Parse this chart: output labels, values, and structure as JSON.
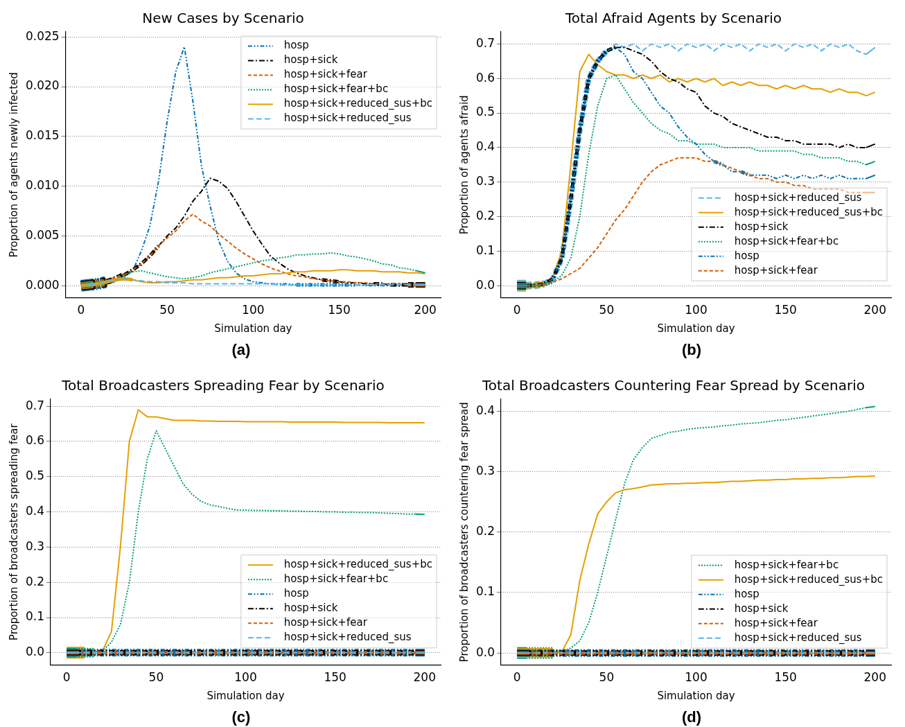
{
  "chart_data": [
    {
      "type": "line",
      "title": "New Cases by Scenario",
      "xlabel": "Simulation day",
      "ylabel": "Proportion of agents newly infected",
      "annotations": [
        "(a)"
      ],
      "grid": "y",
      "legend": "top right",
      "x": [
        0,
        5,
        10,
        15,
        20,
        25,
        30,
        35,
        40,
        45,
        50,
        55,
        60,
        65,
        70,
        75,
        80,
        85,
        90,
        95,
        100,
        105,
        110,
        115,
        120,
        125,
        130,
        135,
        140,
        145,
        150,
        155,
        160,
        165,
        170,
        175,
        180,
        185,
        190,
        195,
        200
      ],
      "xlim": [
        -9,
        209
      ],
      "xticks": [
        0,
        50,
        100,
        150,
        200
      ],
      "ylim": [
        -0.0012,
        0.0255
      ],
      "yticks": [
        {
          "value": 0,
          "label": "0.000"
        },
        {
          "value": 0.005,
          "label": "0.005"
        },
        {
          "value": 0.01,
          "label": "0.010"
        },
        {
          "value": 0.015,
          "label": "0.015"
        },
        {
          "value": 0.02,
          "label": "0.020"
        },
        {
          "value": 0.025,
          "label": "0.025"
        }
      ],
      "series": [
        {
          "name": "hosp",
          "color": "#0072b2",
          "line_style": "dashdotdot",
          "values": [
            0,
            0.0001,
            0.0002,
            0.0004,
            0.0006,
            0.0009,
            0.0015,
            0.0035,
            0.006,
            0.0105,
            0.0165,
            0.0215,
            0.024,
            0.0185,
            0.012,
            0.008,
            0.0045,
            0.0025,
            0.0013,
            0.0007,
            0.0004,
            0.0003,
            0.0002,
            0.0002,
            0.0002,
            0.0001,
            0.0001,
            0.0001,
            0.0001,
            0.0001,
            0.0001,
            0.0001,
            0.0001,
            0,
            0,
            0,
            0,
            0,
            0,
            0,
            0
          ]
        },
        {
          "name": "hosp+sick",
          "color": "#000000",
          "line_style": "dashdot",
          "values": [
            0,
            0.0001,
            0.0002,
            0.0004,
            0.0007,
            0.0011,
            0.0016,
            0.0022,
            0.003,
            0.004,
            0.005,
            0.0058,
            0.007,
            0.0085,
            0.0095,
            0.0108,
            0.0105,
            0.0098,
            0.0085,
            0.007,
            0.0055,
            0.0042,
            0.003,
            0.0023,
            0.0017,
            0.0013,
            0.001,
            0.0008,
            0.0006,
            0.0005,
            0.0004,
            0.0003,
            0.0003,
            0.0002,
            0.0002,
            0.0002,
            0.0001,
            0.0001,
            0.0001,
            0.0001,
            0.0001
          ]
        },
        {
          "name": "hosp+sick+fear",
          "color": "#d55e00",
          "line_style": "dashed",
          "values": [
            0,
            0.0001,
            0.0002,
            0.0004,
            0.0007,
            0.0011,
            0.0016,
            0.0022,
            0.003,
            0.004,
            0.0048,
            0.0055,
            0.0065,
            0.0072,
            0.0065,
            0.006,
            0.0052,
            0.0045,
            0.0038,
            0.0032,
            0.0027,
            0.0022,
            0.0018,
            0.0015,
            0.0012,
            0.001,
            0.0009,
            0.0007,
            0.0006,
            0.0005,
            0.0004,
            0.0004,
            0.0003,
            0.0003,
            0.0002,
            0.0002,
            0.0002,
            0.0002,
            0.0001,
            0.0001,
            0.0001
          ]
        },
        {
          "name": "hosp+sick+fear+bc",
          "color": "#009e73",
          "line_style": "dotted",
          "values": [
            0,
            0.0001,
            0.0002,
            0.0004,
            0.0007,
            0.0011,
            0.0014,
            0.0015,
            0.0013,
            0.0011,
            0.0009,
            0.0008,
            0.0007,
            0.0008,
            0.001,
            0.0013,
            0.0015,
            0.0017,
            0.0019,
            0.0021,
            0.0023,
            0.0025,
            0.0026,
            0.0028,
            0.0029,
            0.0031,
            0.0031,
            0.0032,
            0.0032,
            0.0033,
            0.0032,
            0.003,
            0.0029,
            0.0027,
            0.0025,
            0.0022,
            0.0021,
            0.0018,
            0.0017,
            0.0015,
            0.0013
          ]
        },
        {
          "name": "hosp+sick+reduced_sus+bc",
          "color": "#e69f00",
          "line_style": "solid",
          "values": [
            0,
            0.0001,
            0.0002,
            0.0004,
            0.0006,
            0.0007,
            0.0006,
            0.0004,
            0.0003,
            0.0003,
            0.0004,
            0.0004,
            0.0005,
            0.0006,
            0.0006,
            0.0007,
            0.0008,
            0.0008,
            0.0009,
            0.001,
            0.001,
            0.0011,
            0.0012,
            0.0012,
            0.0013,
            0.0014,
            0.0014,
            0.0015,
            0.0015,
            0.0015,
            0.0016,
            0.0016,
            0.0015,
            0.0015,
            0.0015,
            0.0014,
            0.0014,
            0.0014,
            0.0013,
            0.0013,
            0.0012
          ]
        },
        {
          "name": "hosp+sick+reduced_sus",
          "color": "#56b4e9",
          "line_style": "longdashed",
          "values": [
            0,
            0.0001,
            0.0002,
            0.0004,
            0.0006,
            0.0007,
            0.0006,
            0.0005,
            0.0004,
            0.0004,
            0.0003,
            0.0003,
            0.0003,
            0.0002,
            0.0002,
            0.0002,
            0.0002,
            0.0002,
            0.0002,
            0.0002,
            0.0002,
            0.0002,
            0.0002,
            0.0001,
            0.0001,
            0.0001,
            0.0001,
            0.0001,
            0.0001,
            0.0001,
            0.0001,
            0.0001,
            0.0001,
            0.0001,
            0.0001,
            0.0001,
            0.0001,
            0.0001,
            0.0001,
            0.0001,
            0.0001
          ]
        }
      ]
    },
    {
      "type": "line",
      "title": "Total Afraid Agents by Scenario",
      "xlabel": "Simulation day",
      "ylabel": "Proportion of agents afraid",
      "annotations": [
        "(b)"
      ],
      "grid": "y",
      "legend": "bottom right",
      "x": [
        0,
        5,
        10,
        15,
        20,
        25,
        30,
        35,
        40,
        45,
        50,
        55,
        60,
        65,
        70,
        75,
        80,
        85,
        90,
        95,
        100,
        105,
        110,
        115,
        120,
        125,
        130,
        135,
        140,
        145,
        150,
        155,
        160,
        165,
        170,
        175,
        180,
        185,
        190,
        195,
        200
      ],
      "xlim": [
        -9,
        209
      ],
      "xticks": [
        0,
        50,
        100,
        150,
        200
      ],
      "ylim": [
        -0.035,
        0.735
      ],
      "yticks": [
        {
          "value": 0,
          "label": "0.0"
        },
        0.1,
        0.2,
        0.3,
        0.4,
        0.5,
        0.6,
        0.7
      ],
      "series": [
        {
          "name": "hosp+sick+reduced_sus",
          "color": "#56b4e9",
          "line_style": "longdashed",
          "values": [
            0,
            0,
            0.001,
            0.005,
            0.02,
            0.08,
            0.25,
            0.45,
            0.6,
            0.65,
            0.68,
            0.7,
            0.69,
            0.7,
            0.68,
            0.7,
            0.69,
            0.7,
            0.68,
            0.7,
            0.69,
            0.7,
            0.68,
            0.7,
            0.69,
            0.7,
            0.68,
            0.7,
            0.69,
            0.7,
            0.68,
            0.7,
            0.69,
            0.7,
            0.68,
            0.7,
            0.69,
            0.7,
            0.68,
            0.67,
            0.69
          ]
        },
        {
          "name": "hosp+sick+reduced_sus+bc",
          "color": "#e69f00",
          "line_style": "solid",
          "values": [
            0,
            0,
            0.001,
            0.005,
            0.025,
            0.1,
            0.35,
            0.62,
            0.67,
            0.64,
            0.62,
            0.61,
            0.61,
            0.6,
            0.61,
            0.6,
            0.61,
            0.59,
            0.6,
            0.59,
            0.6,
            0.59,
            0.6,
            0.58,
            0.59,
            0.58,
            0.59,
            0.58,
            0.58,
            0.57,
            0.58,
            0.57,
            0.58,
            0.57,
            0.57,
            0.56,
            0.57,
            0.56,
            0.56,
            0.55,
            0.56
          ]
        },
        {
          "name": "hosp+sick",
          "color": "#000000",
          "line_style": "dashdot",
          "values": [
            0,
            0,
            0.001,
            0.005,
            0.02,
            0.08,
            0.25,
            0.45,
            0.6,
            0.65,
            0.68,
            0.69,
            0.69,
            0.68,
            0.67,
            0.65,
            0.62,
            0.6,
            0.59,
            0.57,
            0.56,
            0.52,
            0.5,
            0.49,
            0.47,
            0.46,
            0.45,
            0.44,
            0.43,
            0.43,
            0.42,
            0.42,
            0.41,
            0.41,
            0.41,
            0.41,
            0.4,
            0.41,
            0.4,
            0.4,
            0.41
          ]
        },
        {
          "name": "hosp+sick+fear+bc",
          "color": "#009e73",
          "line_style": "dotted",
          "values": [
            0,
            0,
            0,
            0.003,
            0.01,
            0.03,
            0.08,
            0.2,
            0.38,
            0.52,
            0.6,
            0.61,
            0.57,
            0.53,
            0.5,
            0.47,
            0.45,
            0.44,
            0.42,
            0.42,
            0.41,
            0.41,
            0.41,
            0.4,
            0.4,
            0.4,
            0.4,
            0.39,
            0.39,
            0.39,
            0.39,
            0.39,
            0.38,
            0.38,
            0.37,
            0.37,
            0.37,
            0.36,
            0.36,
            0.35,
            0.36
          ]
        },
        {
          "name": "hosp",
          "color": "#0072b2",
          "line_style": "dashdotdot",
          "values": [
            0,
            0,
            0.001,
            0.005,
            0.02,
            0.08,
            0.25,
            0.45,
            0.6,
            0.65,
            0.68,
            0.69,
            0.67,
            0.62,
            0.6,
            0.56,
            0.52,
            0.5,
            0.46,
            0.43,
            0.41,
            0.38,
            0.36,
            0.35,
            0.33,
            0.33,
            0.32,
            0.32,
            0.32,
            0.31,
            0.32,
            0.31,
            0.32,
            0.31,
            0.32,
            0.31,
            0.32,
            0.31,
            0.31,
            0.31,
            0.32
          ]
        },
        {
          "name": "hosp+sick+fear",
          "color": "#d55e00",
          "line_style": "dashed",
          "values": [
            0,
            0,
            0,
            0.003,
            0.01,
            0.02,
            0.035,
            0.05,
            0.08,
            0.11,
            0.15,
            0.19,
            0.22,
            0.26,
            0.3,
            0.33,
            0.35,
            0.36,
            0.37,
            0.37,
            0.37,
            0.36,
            0.36,
            0.35,
            0.34,
            0.33,
            0.32,
            0.31,
            0.31,
            0.3,
            0.3,
            0.29,
            0.29,
            0.28,
            0.28,
            0.28,
            0.28,
            0.27,
            0.27,
            0.27,
            0.27
          ]
        }
      ]
    },
    {
      "type": "line",
      "title": "Total Broadcasters Spreading Fear by Scenario",
      "xlabel": "Simulation day",
      "ylabel": "Proportion of broadcasters spreading fear",
      "annotations": [
        "(c)"
      ],
      "grid": "y",
      "legend": "bottom right",
      "x": [
        0,
        5,
        10,
        15,
        20,
        25,
        30,
        35,
        40,
        45,
        50,
        55,
        60,
        65,
        70,
        75,
        80,
        85,
        90,
        95,
        100,
        105,
        110,
        115,
        120,
        125,
        130,
        135,
        140,
        145,
        150,
        155,
        160,
        165,
        170,
        175,
        180,
        185,
        190,
        195,
        200
      ],
      "xlim": [
        -9,
        209
      ],
      "xticks": [
        0,
        50,
        100,
        150,
        200
      ],
      "ylim": [
        -0.035,
        0.72
      ],
      "yticks": [
        {
          "value": 0,
          "label": "0.0"
        },
        0.1,
        0.2,
        0.3,
        0.4,
        0.5,
        0.6,
        0.7
      ],
      "series": [
        {
          "name": "hosp+sick+reduced_sus+bc",
          "color": "#e69f00",
          "line_style": "solid",
          "values": [
            0,
            0,
            0,
            0.001,
            0.005,
            0.06,
            0.3,
            0.6,
            0.69,
            0.67,
            0.67,
            0.665,
            0.66,
            0.66,
            0.66,
            0.658,
            0.658,
            0.657,
            0.657,
            0.657,
            0.656,
            0.656,
            0.656,
            0.656,
            0.656,
            0.655,
            0.655,
            0.655,
            0.655,
            0.655,
            0.655,
            0.654,
            0.654,
            0.654,
            0.654,
            0.654,
            0.653,
            0.653,
            0.653,
            0.653,
            0.653
          ]
        },
        {
          "name": "hosp+sick+fear+bc",
          "color": "#009e73",
          "line_style": "dotted",
          "values": [
            0,
            0,
            0,
            0,
            0.005,
            0.03,
            0.08,
            0.2,
            0.4,
            0.55,
            0.63,
            0.58,
            0.53,
            0.48,
            0.45,
            0.43,
            0.42,
            0.415,
            0.41,
            0.405,
            0.405,
            0.404,
            0.404,
            0.403,
            0.403,
            0.402,
            0.402,
            0.401,
            0.401,
            0.4,
            0.4,
            0.399,
            0.399,
            0.398,
            0.398,
            0.397,
            0.396,
            0.395,
            0.394,
            0.394,
            0.393
          ]
        },
        {
          "name": "hosp",
          "color": "#0072b2",
          "line_style": "dashdotdot",
          "values": [
            0,
            0,
            0,
            0,
            0,
            0,
            0,
            0,
            0,
            0,
            0,
            0,
            0,
            0,
            0,
            0,
            0,
            0,
            0,
            0,
            0,
            0,
            0,
            0,
            0,
            0,
            0,
            0,
            0,
            0,
            0,
            0,
            0,
            0,
            0,
            0,
            0,
            0,
            0,
            0,
            0
          ]
        },
        {
          "name": "hosp+sick",
          "color": "#000000",
          "line_style": "dashdot",
          "values": [
            0,
            0,
            0,
            0,
            0,
            0,
            0,
            0,
            0,
            0,
            0,
            0,
            0,
            0,
            0,
            0,
            0,
            0,
            0,
            0,
            0,
            0,
            0,
            0,
            0,
            0,
            0,
            0,
            0,
            0,
            0,
            0,
            0,
            0,
            0,
            0,
            0,
            0,
            0,
            0,
            0
          ]
        },
        {
          "name": "hosp+sick+fear",
          "color": "#d55e00",
          "line_style": "dashed",
          "values": [
            0,
            0,
            0,
            0,
            0,
            0,
            0,
            0,
            0,
            0,
            0,
            0,
            0,
            0,
            0,
            0,
            0,
            0,
            0,
            0,
            0,
            0,
            0,
            0,
            0,
            0,
            0,
            0,
            0,
            0,
            0,
            0,
            0,
            0,
            0,
            0,
            0,
            0,
            0,
            0,
            0
          ]
        },
        {
          "name": "hosp+sick+reduced_sus",
          "color": "#56b4e9",
          "line_style": "longdashed",
          "values": [
            0,
            0,
            0,
            0,
            0,
            0,
            0,
            0,
            0,
            0,
            0,
            0,
            0,
            0,
            0,
            0,
            0,
            0,
            0,
            0,
            0,
            0,
            0,
            0,
            0,
            0,
            0,
            0,
            0,
            0,
            0,
            0,
            0,
            0,
            0,
            0,
            0,
            0,
            0,
            0,
            0
          ]
        }
      ]
    },
    {
      "type": "line",
      "title": "Total Broadcasters Countering Fear Spread by Scenario",
      "xlabel": "Simulation day",
      "ylabel": "Proportion of broadcasters countering fear spread",
      "annotations": [
        "(d)"
      ],
      "grid": "y",
      "legend": "bottom right",
      "x": [
        0,
        5,
        10,
        15,
        20,
        25,
        30,
        35,
        40,
        45,
        50,
        55,
        60,
        65,
        70,
        75,
        80,
        85,
        90,
        95,
        100,
        105,
        110,
        115,
        120,
        125,
        130,
        135,
        140,
        145,
        150,
        155,
        160,
        165,
        170,
        175,
        180,
        185,
        190,
        195,
        200
      ],
      "xlim": [
        -9,
        209
      ],
      "xticks": [
        0,
        50,
        100,
        150,
        200
      ],
      "ylim": [
        -0.02,
        0.42
      ],
      "yticks": [
        {
          "value": 0,
          "label": "0.0"
        },
        0.1,
        0.2,
        0.3,
        0.4
      ],
      "series": [
        {
          "name": "hosp+sick+fear+bc",
          "color": "#009e73",
          "line_style": "dotted",
          "values": [
            0,
            0,
            0,
            0,
            0,
            0.002,
            0.008,
            0.02,
            0.05,
            0.1,
            0.16,
            0.22,
            0.28,
            0.32,
            0.34,
            0.355,
            0.36,
            0.365,
            0.367,
            0.37,
            0.372,
            0.373,
            0.374,
            0.376,
            0.377,
            0.379,
            0.38,
            0.381,
            0.383,
            0.385,
            0.386,
            0.388,
            0.39,
            0.392,
            0.394,
            0.396,
            0.398,
            0.4,
            0.403,
            0.406,
            0.408
          ]
        },
        {
          "name": "hosp+sick+reduced_sus+bc",
          "color": "#e69f00",
          "line_style": "solid",
          "values": [
            0,
            0,
            0,
            0,
            0,
            0.002,
            0.03,
            0.12,
            0.18,
            0.23,
            0.25,
            0.265,
            0.27,
            0.272,
            0.275,
            0.278,
            0.279,
            0.28,
            0.28,
            0.281,
            0.281,
            0.282,
            0.282,
            0.283,
            0.284,
            0.284,
            0.285,
            0.286,
            0.286,
            0.287,
            0.287,
            0.288,
            0.288,
            0.289,
            0.289,
            0.29,
            0.29,
            0.291,
            0.292,
            0.292,
            0.293
          ]
        },
        {
          "name": "hosp",
          "color": "#0072b2",
          "line_style": "dashdotdot",
          "values": [
            0,
            0,
            0,
            0,
            0,
            0,
            0,
            0,
            0,
            0,
            0,
            0,
            0,
            0,
            0,
            0,
            0,
            0,
            0,
            0,
            0,
            0,
            0,
            0,
            0,
            0,
            0,
            0,
            0,
            0,
            0,
            0,
            0,
            0,
            0,
            0,
            0,
            0,
            0,
            0,
            0
          ]
        },
        {
          "name": "hosp+sick",
          "color": "#000000",
          "line_style": "dashdot",
          "values": [
            0,
            0,
            0,
            0,
            0,
            0,
            0,
            0,
            0,
            0,
            0,
            0,
            0,
            0,
            0,
            0,
            0,
            0,
            0,
            0,
            0,
            0,
            0,
            0,
            0,
            0,
            0,
            0,
            0,
            0,
            0,
            0,
            0,
            0,
            0,
            0,
            0,
            0,
            0,
            0,
            0
          ]
        },
        {
          "name": "hosp+sick+fear",
          "color": "#d55e00",
          "line_style": "dashed",
          "values": [
            0,
            0,
            0,
            0,
            0,
            0,
            0,
            0,
            0,
            0,
            0,
            0,
            0,
            0,
            0,
            0,
            0,
            0,
            0,
            0,
            0,
            0,
            0,
            0,
            0,
            0,
            0,
            0,
            0,
            0,
            0,
            0,
            0,
            0,
            0,
            0,
            0,
            0,
            0,
            0,
            0
          ]
        },
        {
          "name": "hosp+sick+reduced_sus",
          "color": "#56b4e9",
          "line_style": "longdashed",
          "values": [
            0,
            0,
            0,
            0,
            0,
            0,
            0,
            0,
            0,
            0,
            0,
            0,
            0,
            0,
            0,
            0,
            0,
            0,
            0,
            0,
            0,
            0,
            0,
            0,
            0,
            0,
            0,
            0,
            0,
            0,
            0,
            0,
            0,
            0,
            0,
            0,
            0,
            0,
            0,
            0,
            0
          ]
        }
      ]
    }
  ]
}
